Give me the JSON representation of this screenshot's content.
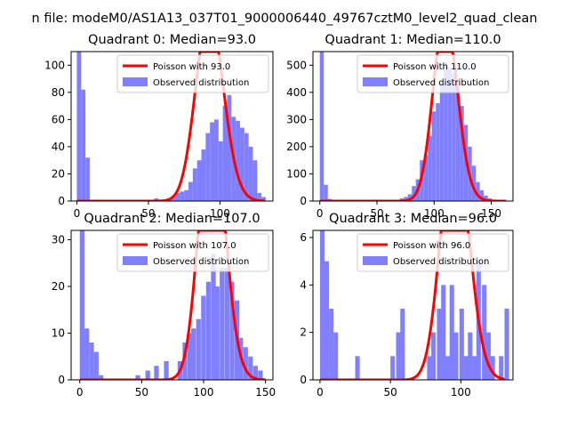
{
  "figure": {
    "suptitle": "n file: modeM0/AS1A13_037T01_9000006440_49767cztM0_level2_quad_clean"
  },
  "colors": {
    "observed": "#8080ff",
    "poisson": "#ff0000",
    "axis": "#000000"
  },
  "chart_data": [
    {
      "type": "bar+line",
      "title": "Quadrant 0: Median=93.0",
      "xlim": [
        -4,
        137
      ],
      "ylim": [
        0,
        110
      ],
      "xticks": [
        0,
        50,
        100
      ],
      "yticks": [
        0,
        20,
        40,
        60,
        80,
        100
      ],
      "bin_width": 3,
      "hist": [
        [
          0,
          110
        ],
        [
          3,
          82
        ],
        [
          6,
          32
        ],
        [
          54,
          2
        ],
        [
          63,
          2
        ],
        [
          66,
          4
        ],
        [
          69,
          6
        ],
        [
          72,
          7
        ],
        [
          75,
          8
        ],
        [
          78,
          14
        ],
        [
          81,
          24
        ],
        [
          84,
          30
        ],
        [
          87,
          38
        ],
        [
          90,
          50
        ],
        [
          93,
          58
        ],
        [
          96,
          60
        ],
        [
          99,
          44
        ],
        [
          102,
          70
        ],
        [
          105,
          78
        ],
        [
          108,
          62
        ],
        [
          111,
          59
        ],
        [
          114,
          54
        ],
        [
          117,
          50
        ],
        [
          120,
          40
        ],
        [
          123,
          30
        ],
        [
          126,
          6
        ],
        [
          129,
          3
        ]
      ],
      "poisson_mean": 93.0,
      "poisson_scale": 3350,
      "legend": [
        "Poisson with 93.0",
        "Observed distribution"
      ]
    },
    {
      "type": "bar+line",
      "title": "Quadrant 1: Median=110.0",
      "xlim": [
        -6,
        169
      ],
      "ylim": [
        0,
        550
      ],
      "xticks": [
        0,
        50,
        100,
        150
      ],
      "yticks": [
        0,
        100,
        200,
        300,
        400,
        500
      ],
      "bin_width": 3.5,
      "hist": [
        [
          0,
          550
        ],
        [
          3.5,
          60
        ],
        [
          7,
          8
        ],
        [
          66,
          3
        ],
        [
          70,
          10
        ],
        [
          73.5,
          15
        ],
        [
          77,
          25
        ],
        [
          80.5,
          55
        ],
        [
          84,
          80
        ],
        [
          87.5,
          150
        ],
        [
          91,
          170
        ],
        [
          94.5,
          240
        ],
        [
          98,
          330
        ],
        [
          101.5,
          360
        ],
        [
          105,
          430
        ],
        [
          108.5,
          510
        ],
        [
          112,
          490
        ],
        [
          115.5,
          470
        ],
        [
          119,
          420
        ],
        [
          122.5,
          350
        ],
        [
          126,
          280
        ],
        [
          129.5,
          200
        ],
        [
          133,
          130
        ],
        [
          136.5,
          70
        ],
        [
          140,
          40
        ],
        [
          143.5,
          20
        ],
        [
          147,
          10
        ],
        [
          150.5,
          5
        ],
        [
          154,
          3
        ]
      ],
      "poisson_mean": 110.0,
      "poisson_scale": 18000,
      "legend": [
        "Poisson with 110.0",
        "Observed distribution"
      ]
    },
    {
      "type": "bar+line",
      "title": "Quadrant 2: Median=107.0",
      "xlim": [
        -7,
        156
      ],
      "ylim": [
        0,
        32
      ],
      "xticks": [
        0,
        50,
        100,
        150
      ],
      "yticks": [
        0,
        10,
        20,
        30
      ],
      "bin_width": 3.8,
      "hist": [
        [
          0,
          32
        ],
        [
          3.8,
          11
        ],
        [
          7.6,
          8
        ],
        [
          11.4,
          6
        ],
        [
          15.2,
          1
        ],
        [
          45,
          1
        ],
        [
          53,
          2
        ],
        [
          60,
          3
        ],
        [
          68,
          4
        ],
        [
          79,
          4
        ],
        [
          83,
          8
        ],
        [
          87,
          10
        ],
        [
          90,
          11
        ],
        [
          94,
          13
        ],
        [
          98,
          18
        ],
        [
          102,
          21
        ],
        [
          106,
          27
        ],
        [
          109,
          20
        ],
        [
          113,
          24
        ],
        [
          117,
          24
        ],
        [
          121,
          21
        ],
        [
          125,
          17
        ],
        [
          128,
          9
        ],
        [
          132,
          7
        ],
        [
          136,
          5
        ],
        [
          140,
          3
        ],
        [
          144,
          2
        ]
      ],
      "poisson_mean": 107.0,
      "poisson_scale": 1480,
      "legend": [
        "Poisson with 107.0",
        "Observed distribution"
      ]
    },
    {
      "type": "bar+line",
      "title": "Quadrant 3: Median=96.0",
      "xlim": [
        -5,
        137
      ],
      "ylim": [
        0,
        6.3
      ],
      "xticks": [
        0,
        50,
        100
      ],
      "yticks": [
        0,
        2,
        4,
        6
      ],
      "bin_width": 3.2,
      "hist": [
        [
          0,
          6.3
        ],
        [
          3.2,
          5
        ],
        [
          6.4,
          3
        ],
        [
          9.6,
          2
        ],
        [
          25,
          1
        ],
        [
          50,
          1
        ],
        [
          54,
          2
        ],
        [
          57,
          3
        ],
        [
          76,
          1
        ],
        [
          79,
          2
        ],
        [
          83,
          3
        ],
        [
          86,
          4
        ],
        [
          89,
          1
        ],
        [
          92,
          4
        ],
        [
          95,
          2
        ],
        [
          99,
          3
        ],
        [
          102,
          1
        ],
        [
          105,
          2
        ],
        [
          108,
          1
        ],
        [
          111,
          5
        ],
        [
          115,
          4
        ],
        [
          118,
          2
        ],
        [
          121,
          1
        ],
        [
          127,
          1
        ],
        [
          131,
          3
        ]
      ],
      "poisson_mean": 96.0,
      "poisson_scale": 258,
      "legend": [
        "Poisson with 96.0",
        "Observed distribution"
      ]
    }
  ]
}
